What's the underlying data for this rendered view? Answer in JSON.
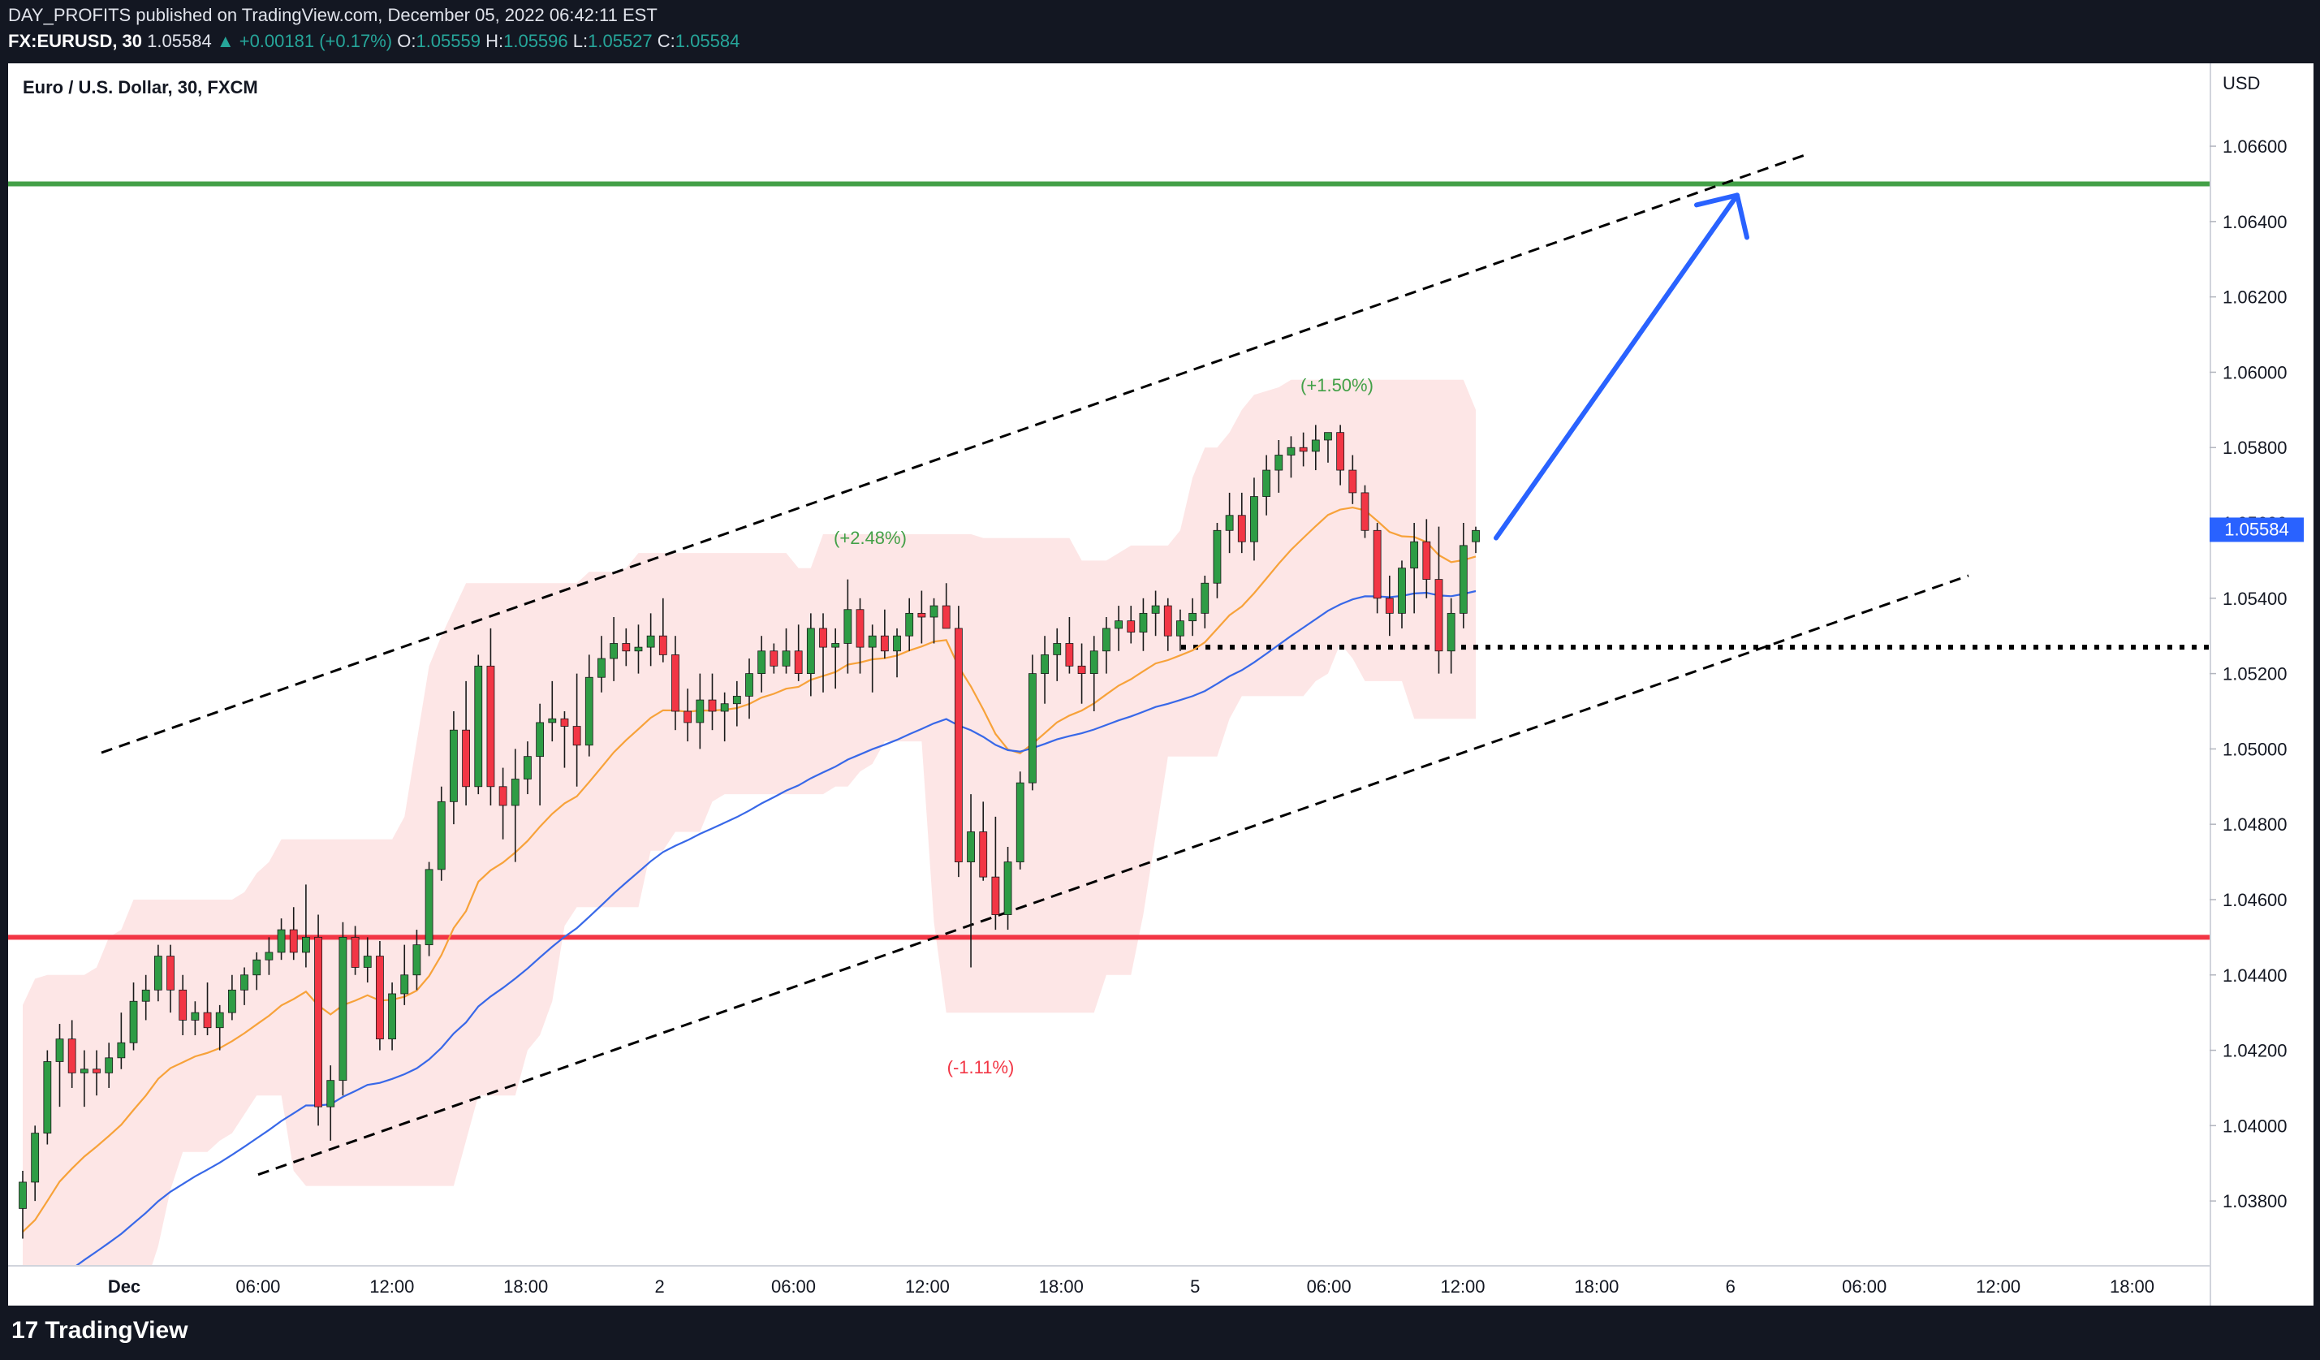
{
  "header": {
    "published": "DAY_PROFITS published on TradingView.com, December 05, 2022 06:42:11 EST",
    "symbol": "FX:EURUSD, 30",
    "last": "1.05584",
    "change": "▲ +0.00181 (+0.17%)",
    "o_label": "O:",
    "o_value": "1.05559",
    "h_label": "H:",
    "h_value": "1.05596",
    "l_label": "L:",
    "l_value": "1.05527",
    "c_label": "C:",
    "c_value": "1.05584"
  },
  "legend_title": "Euro / U.S. Dollar, 30, FXCM",
  "currency": "USD",
  "brand": "TradingView",
  "colors": {
    "up": "#26a69a",
    "up_candle": "#2e9c45",
    "down": "#f23645",
    "resistance": "#43a047",
    "support": "#f23645",
    "arrow": "#2962ff",
    "ema_fast": "#f7a23a",
    "ema_slow": "#3868e8",
    "band": "#fde2e2"
  },
  "chart_data": {
    "type": "candlestick",
    "title": "Euro / U.S. Dollar, 30, FXCM",
    "ylabel": "USD",
    "ylim": [
      1.0363,
      1.0682
    ],
    "y_ticks": [
      "1.06600",
      "1.06400",
      "1.06200",
      "1.06000",
      "1.05800",
      "1.05600",
      "1.05400",
      "1.05200",
      "1.05000",
      "1.04800",
      "1.04600",
      "1.04400",
      "1.04200",
      "1.04000",
      "1.03800"
    ],
    "x_ticks": [
      "Dec",
      "06:00",
      "12:00",
      "18:00",
      "2",
      "06:00",
      "12:00",
      "18:00",
      "5",
      "06:00",
      "12:00",
      "18:00",
      "6",
      "06:00",
      "12:00",
      "18:00"
    ],
    "current_price": "1.05584",
    "resistance": 1.065,
    "support": 1.045,
    "dotted_level": 1.0527,
    "annotations": [
      "(+2.48%)",
      "(+1.50%)",
      "(-1.11%)"
    ],
    "channel": {
      "upper": [
        [
          "Dec 1 00:00",
          1.0499
        ],
        [
          "Dec 6 03:00",
          1.0658
        ]
      ],
      "lower": [
        [
          "Dec 1 10:00",
          1.0387
        ],
        [
          "Dec 6 12:00",
          1.0546
        ]
      ]
    },
    "arrow": {
      "from": [
        "Dec 5 13:00",
        1.0556
      ],
      "to": [
        "Dec 6 00:00",
        1.0647
      ]
    },
    "candles_ohlc": [
      [
        1.0378,
        1.0388,
        1.037,
        1.0385
      ],
      [
        1.0385,
        1.04,
        1.038,
        1.0398
      ],
      [
        1.0398,
        1.042,
        1.0395,
        1.0417
      ],
      [
        1.0417,
        1.0427,
        1.0405,
        1.0423
      ],
      [
        1.0423,
        1.0428,
        1.041,
        1.0414
      ],
      [
        1.0414,
        1.042,
        1.0405,
        1.0415
      ],
      [
        1.0415,
        1.042,
        1.0408,
        1.0414
      ],
      [
        1.0414,
        1.0422,
        1.041,
        1.0418
      ],
      [
        1.0418,
        1.043,
        1.0415,
        1.0422
      ],
      [
        1.0422,
        1.0438,
        1.042,
        1.0433
      ],
      [
        1.0433,
        1.044,
        1.0428,
        1.0436
      ],
      [
        1.0436,
        1.0448,
        1.0433,
        1.0445
      ],
      [
        1.0445,
        1.0448,
        1.043,
        1.0436
      ],
      [
        1.0436,
        1.044,
        1.0424,
        1.0428
      ],
      [
        1.0428,
        1.0433,
        1.0424,
        1.043
      ],
      [
        1.043,
        1.0438,
        1.0424,
        1.0426
      ],
      [
        1.0426,
        1.0432,
        1.042,
        1.043
      ],
      [
        1.043,
        1.044,
        1.0428,
        1.0436
      ],
      [
        1.0436,
        1.0442,
        1.0432,
        1.044
      ],
      [
        1.044,
        1.0446,
        1.0436,
        1.0444
      ],
      [
        1.0444,
        1.045,
        1.044,
        1.0446
      ],
      [
        1.0446,
        1.0455,
        1.0444,
        1.0452
      ],
      [
        1.0452,
        1.0458,
        1.0444,
        1.0446
      ],
      [
        1.0446,
        1.0464,
        1.0442,
        1.045
      ],
      [
        1.045,
        1.0456,
        1.04,
        1.0405
      ],
      [
        1.0405,
        1.0416,
        1.0396,
        1.0412
      ],
      [
        1.0412,
        1.0454,
        1.0408,
        1.045
      ],
      [
        1.045,
        1.0453,
        1.044,
        1.0442
      ],
      [
        1.0442,
        1.045,
        1.0438,
        1.0445
      ],
      [
        1.0445,
        1.0449,
        1.042,
        1.0423
      ],
      [
        1.0423,
        1.0438,
        1.042,
        1.0435
      ],
      [
        1.0435,
        1.0448,
        1.0432,
        1.044
      ],
      [
        1.044,
        1.0452,
        1.0436,
        1.0448
      ],
      [
        1.0448,
        1.047,
        1.0445,
        1.0468
      ],
      [
        1.0468,
        1.049,
        1.0465,
        1.0486
      ],
      [
        1.0486,
        1.051,
        1.048,
        1.0505
      ],
      [
        1.0505,
        1.0518,
        1.0485,
        1.049
      ],
      [
        1.049,
        1.0525,
        1.0488,
        1.0522
      ],
      [
        1.0522,
        1.0532,
        1.0485,
        1.049
      ],
      [
        1.049,
        1.0495,
        1.0476,
        1.0485
      ],
      [
        1.0485,
        1.05,
        1.047,
        1.0492
      ],
      [
        1.0492,
        1.0502,
        1.0488,
        1.0498
      ],
      [
        1.0498,
        1.0512,
        1.0485,
        1.0507
      ],
      [
        1.0507,
        1.0518,
        1.0502,
        1.0508
      ],
      [
        1.0508,
        1.051,
        1.0495,
        1.0506
      ],
      [
        1.0506,
        1.052,
        1.049,
        1.0501
      ],
      [
        1.0501,
        1.0525,
        1.0498,
        1.0519
      ],
      [
        1.0519,
        1.053,
        1.0515,
        1.0524
      ],
      [
        1.0524,
        1.0535,
        1.0518,
        1.0528
      ],
      [
        1.0528,
        1.0532,
        1.0522,
        1.0526
      ],
      [
        1.0526,
        1.0533,
        1.052,
        1.0527
      ],
      [
        1.0527,
        1.0536,
        1.0522,
        1.053
      ],
      [
        1.053,
        1.054,
        1.0523,
        1.0525
      ],
      [
        1.0525,
        1.053,
        1.0505,
        1.051
      ],
      [
        1.051,
        1.0516,
        1.0502,
        1.0507
      ],
      [
        1.0507,
        1.052,
        1.05,
        1.0513
      ],
      [
        1.0513,
        1.052,
        1.0505,
        1.051
      ],
      [
        1.051,
        1.0515,
        1.0502,
        1.0512
      ],
      [
        1.0512,
        1.0518,
        1.0506,
        1.0514
      ],
      [
        1.0514,
        1.0524,
        1.0508,
        1.052
      ],
      [
        1.052,
        1.053,
        1.0515,
        1.0526
      ],
      [
        1.0526,
        1.0528,
        1.052,
        1.0522
      ],
      [
        1.0522,
        1.0532,
        1.052,
        1.0526
      ],
      [
        1.0526,
        1.0533,
        1.0518,
        1.052
      ],
      [
        1.052,
        1.0536,
        1.0514,
        1.0532
      ],
      [
        1.0532,
        1.0536,
        1.0515,
        1.0527
      ],
      [
        1.0527,
        1.0532,
        1.0516,
        1.0528
      ],
      [
        1.0528,
        1.0545,
        1.052,
        1.0537
      ],
      [
        1.0537,
        1.054,
        1.052,
        1.0527
      ],
      [
        1.0527,
        1.0533,
        1.0515,
        1.053
      ],
      [
        1.053,
        1.0537,
        1.0524,
        1.0526
      ],
      [
        1.0526,
        1.0532,
        1.0519,
        1.053
      ],
      [
        1.053,
        1.054,
        1.0526,
        1.0536
      ],
      [
        1.0536,
        1.0542,
        1.0528,
        1.0535
      ],
      [
        1.0535,
        1.054,
        1.0528,
        1.0538
      ],
      [
        1.0538,
        1.0544,
        1.0532,
        1.0532
      ],
      [
        1.0532,
        1.0538,
        1.0466,
        1.047
      ],
      [
        1.047,
        1.0488,
        1.0442,
        1.0478
      ],
      [
        1.0478,
        1.0486,
        1.0465,
        1.0466
      ],
      [
        1.0466,
        1.0482,
        1.0452,
        1.0456
      ],
      [
        1.0456,
        1.0474,
        1.0452,
        1.047
      ],
      [
        1.047,
        1.0494,
        1.0468,
        1.0491
      ],
      [
        1.0491,
        1.0525,
        1.0489,
        1.052
      ],
      [
        1.052,
        1.053,
        1.0512,
        1.0525
      ],
      [
        1.0525,
        1.0532,
        1.0518,
        1.0528
      ],
      [
        1.0528,
        1.0535,
        1.052,
        1.0522
      ],
      [
        1.0522,
        1.0528,
        1.0512,
        1.052
      ],
      [
        1.052,
        1.053,
        1.051,
        1.0526
      ],
      [
        1.0526,
        1.0535,
        1.052,
        1.0532
      ],
      [
        1.0532,
        1.0538,
        1.0526,
        1.0534
      ],
      [
        1.0534,
        1.0538,
        1.0528,
        1.0531
      ],
      [
        1.0531,
        1.054,
        1.0526,
        1.0536
      ],
      [
        1.0536,
        1.0542,
        1.053,
        1.0538
      ],
      [
        1.0538,
        1.054,
        1.0526,
        1.053
      ],
      [
        1.053,
        1.0537,
        1.0526,
        1.0534
      ],
      [
        1.0534,
        1.054,
        1.053,
        1.0536
      ],
      [
        1.0536,
        1.0546,
        1.0532,
        1.0544
      ],
      [
        1.0544,
        1.056,
        1.054,
        1.0558
      ],
      [
        1.0558,
        1.0568,
        1.0552,
        1.0562
      ],
      [
        1.0562,
        1.0568,
        1.0552,
        1.0555
      ],
      [
        1.0555,
        1.0572,
        1.055,
        1.0567
      ],
      [
        1.0567,
        1.0578,
        1.0562,
        1.0574
      ],
      [
        1.0574,
        1.0582,
        1.0568,
        1.0578
      ],
      [
        1.0578,
        1.0583,
        1.0572,
        1.058
      ],
      [
        1.058,
        1.0584,
        1.0575,
        1.0579
      ],
      [
        1.0579,
        1.0586,
        1.0574,
        1.0582
      ],
      [
        1.0582,
        1.0584,
        1.0576,
        1.0584
      ],
      [
        1.0584,
        1.0586,
        1.057,
        1.0574
      ],
      [
        1.0574,
        1.0578,
        1.0565,
        1.0568
      ],
      [
        1.0568,
        1.057,
        1.0556,
        1.0558
      ],
      [
        1.0558,
        1.056,
        1.0536,
        1.054
      ],
      [
        1.054,
        1.0546,
        1.053,
        1.0536
      ],
      [
        1.0536,
        1.055,
        1.0532,
        1.0548
      ],
      [
        1.0548,
        1.056,
        1.0536,
        1.0555
      ],
      [
        1.0555,
        1.0561,
        1.054,
        1.0545
      ],
      [
        1.0545,
        1.0559,
        1.052,
        1.0526
      ],
      [
        1.0526,
        1.054,
        1.052,
        1.0536
      ],
      [
        1.0536,
        1.056,
        1.0532,
        1.0554
      ],
      [
        1.0555,
        1.0559,
        1.0552,
        1.0558
      ]
    ]
  }
}
